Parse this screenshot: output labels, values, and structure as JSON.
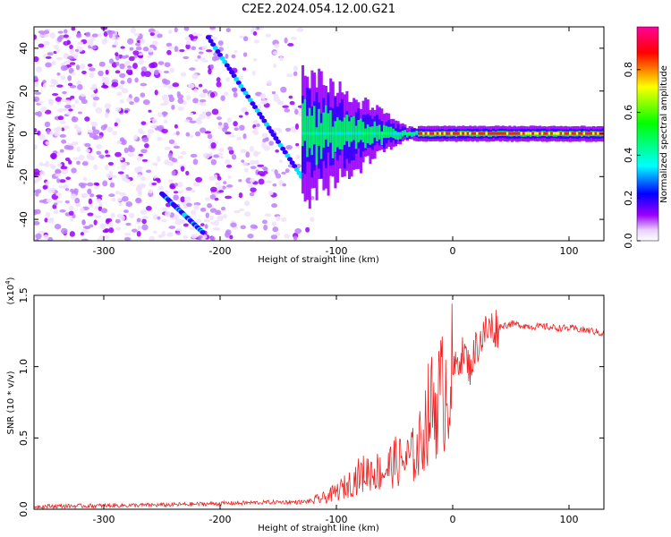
{
  "title": "C2E2.2024.054.12.00.G21",
  "chart_data": [
    {
      "type": "heatmap",
      "xlabel": "Height of straight line (km)",
      "ylabel": "Frequency (Hz)",
      "xlim": [
        -360,
        130
      ],
      "ylim": [
        -50,
        50
      ],
      "x_ticks": [
        -300,
        -200,
        -100,
        0,
        100
      ],
      "x_tick_labels": [
        "-300",
        "-200",
        "-100",
        "0",
        "100"
      ],
      "y_ticks": [
        -40,
        -20,
        0,
        20,
        40
      ],
      "y_tick_labels": [
        "-40",
        "-20",
        "0",
        "20",
        "40"
      ],
      "colorbar": {
        "label": "Normalized spectral amplitude",
        "range": [
          0,
          1
        ],
        "ticks": [
          0.0,
          0.2,
          0.4,
          0.6,
          0.8
        ],
        "tick_labels": [
          "0.0",
          "0.2",
          "0.4",
          "0.6",
          "0.8"
        ],
        "colors": [
          "#ffffff",
          "#9a00ff",
          "#0000ff",
          "#00ffff",
          "#00ff00",
          "#ffff00",
          "#ff0000",
          "#ff0099"
        ]
      },
      "features": [
        {
          "name": "carrier line",
          "x": [
            -130,
            130
          ],
          "frequency": 0
        },
        {
          "name": "upper diagonal",
          "x": [
            -210,
            -130
          ],
          "frequency": [
            45,
            -20
          ]
        },
        {
          "name": "lower diagonal",
          "x": [
            -250,
            -215
          ],
          "frequency": [
            -28,
            -46
          ]
        },
        {
          "name": "noise region",
          "x": [
            -360,
            -120
          ],
          "frequency": [
            -50,
            50
          ]
        }
      ]
    },
    {
      "type": "line",
      "xlabel": "Height of straight line (km)",
      "ylabel": "SNR (10 * v/v)",
      "y_multiplier": "(x10⁴)",
      "y_multiplier_base": "(x10",
      "y_multiplier_exp": "4",
      "y_multiplier_close": ")",
      "xlim": [
        -360,
        130
      ],
      "ylim": [
        0,
        15000
      ],
      "x_ticks": [
        -300,
        -200,
        -100,
        0,
        100
      ],
      "x_tick_labels": [
        "-300",
        "-200",
        "-100",
        "0",
        "100"
      ],
      "y_ticks": [
        0,
        5000,
        10000,
        15000
      ],
      "y_tick_labels": [
        "0.0",
        "0.5",
        "1.0",
        "1.5"
      ],
      "color": "#ee2222",
      "series": [
        {
          "x": [
            -360,
            -300,
            -250,
            -200,
            -150,
            -130,
            -120,
            -110,
            -100,
            -90,
            -80,
            -70,
            -60,
            -50,
            -40,
            -30,
            -20,
            -10,
            0,
            5,
            10,
            15,
            20,
            25,
            30,
            40,
            50,
            60,
            70,
            80,
            90,
            100,
            110,
            120,
            130
          ],
          "values": [
            200,
            250,
            300,
            400,
            500,
            500,
            600,
            800,
            1200,
            1700,
            2400,
            2700,
            2600,
            3300,
            3400,
            4000,
            7000,
            8000,
            9500,
            10500,
            11000,
            9800,
            11400,
            12000,
            12600,
            12800,
            13000,
            12900,
            12800,
            12800,
            12700,
            12700,
            12600,
            12500,
            12300
          ]
        }
      ]
    }
  ]
}
